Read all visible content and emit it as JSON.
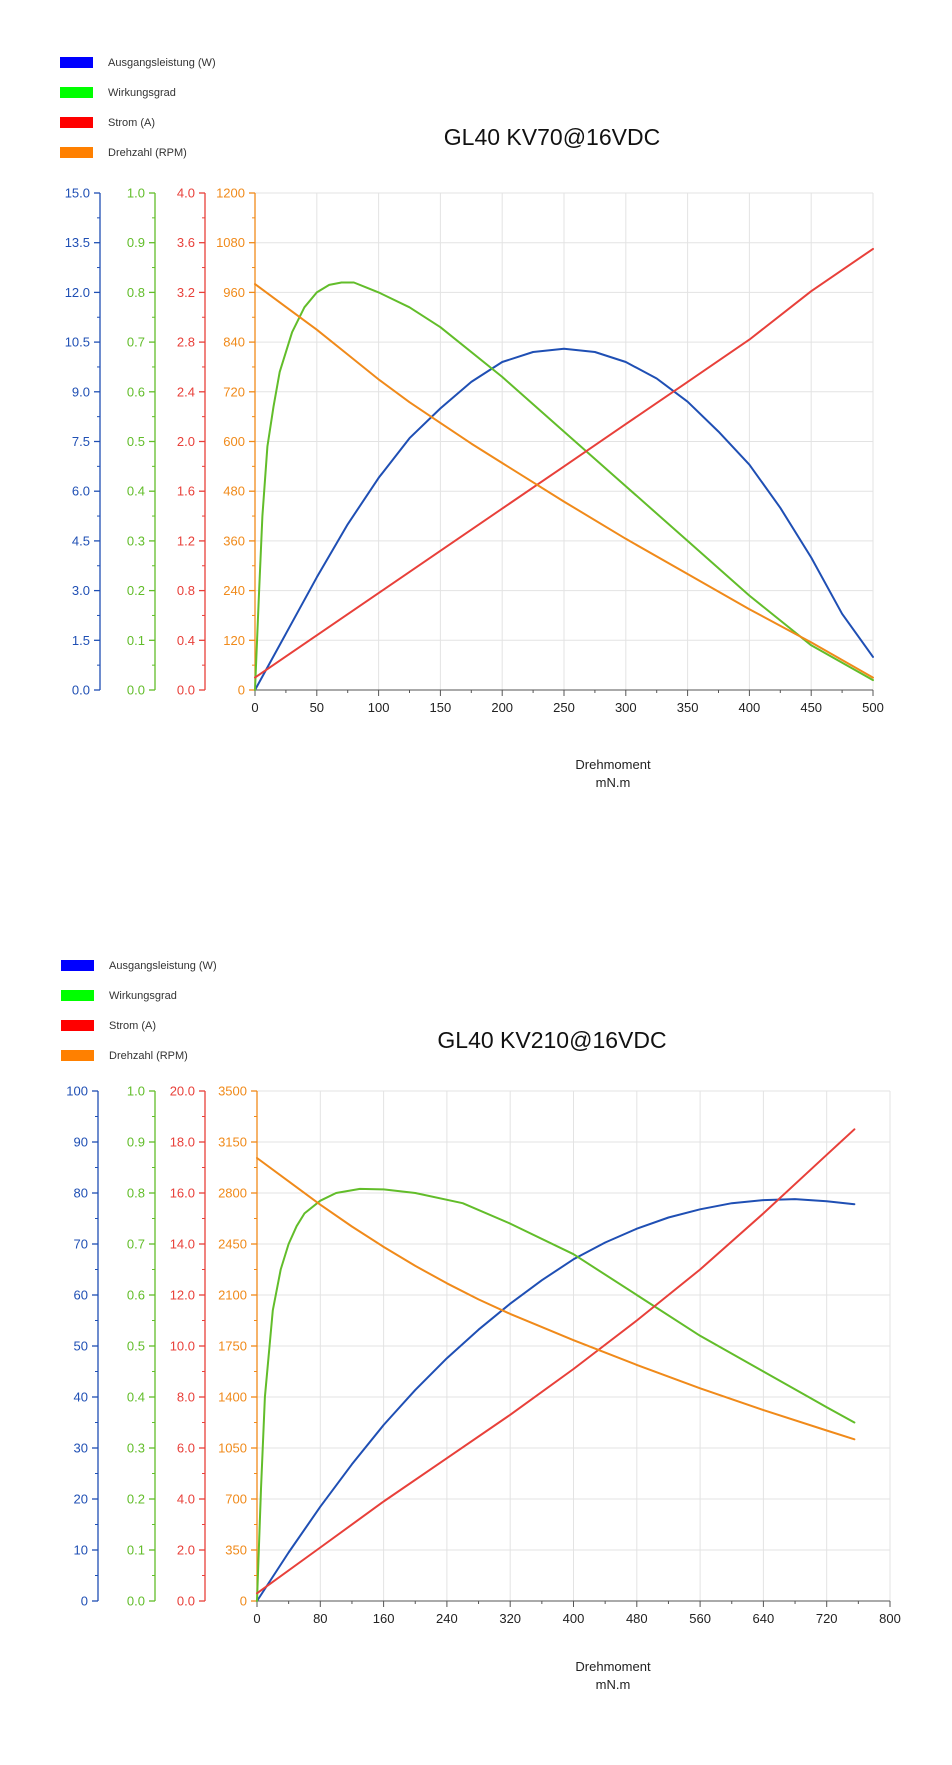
{
  "chart_data": [
    {
      "type": "line",
      "title": "GL40 KV70@16VDC",
      "xlabel": "Drehmoment",
      "xunit": "mN.m",
      "xlim": [
        0,
        500
      ],
      "xticks": [
        "0",
        "50",
        "100",
        "150",
        "200",
        "250",
        "300",
        "350",
        "400",
        "450",
        "500"
      ],
      "legend_position": "top-left",
      "grid": true,
      "axes": [
        {
          "name": "Ausgangsleistung (W)",
          "color": "#1f4fb4",
          "ylim": [
            0,
            15
          ],
          "ticks": [
            "0.0",
            "1.5",
            "3.0",
            "4.5",
            "6.0",
            "7.5",
            "9.0",
            "10.5",
            "12.0",
            "13.5",
            "15.0"
          ]
        },
        {
          "name": "Wirkungsgrad",
          "color": "#62bd2a",
          "ylim": [
            0,
            1
          ],
          "ticks": [
            "0.0",
            "0.1",
            "0.2",
            "0.3",
            "0.4",
            "0.5",
            "0.6",
            "0.7",
            "0.8",
            "0.9",
            "1.0"
          ]
        },
        {
          "name": "Strom (A)",
          "color": "#e8403a",
          "ylim": [
            0,
            4
          ],
          "ticks": [
            "0.0",
            "0.4",
            "0.8",
            "1.2",
            "1.6",
            "2.0",
            "2.4",
            "2.8",
            "3.2",
            "3.6",
            "4.0"
          ]
        },
        {
          "name": "Drehzahl (RPM)",
          "color": "#f08a1a",
          "ylim": [
            0,
            1200
          ],
          "ticks": [
            "0",
            "120",
            "240",
            "360",
            "480",
            "600",
            "720",
            "840",
            "960",
            "1080",
            "1200"
          ]
        }
      ],
      "legend": [
        {
          "label": "Ausgangsleistung (W)",
          "color": "#0000ff"
        },
        {
          "label": "Wirkungsgrad",
          "color": "#00ff00"
        },
        {
          "label": "Strom (A)",
          "color": "#ff0000"
        },
        {
          "label": "Drehzahl (RPM)",
          "color": "#ff8000"
        }
      ],
      "series": [
        {
          "name": "Ausgangsleistung (W)",
          "axis": 0,
          "x": [
            0,
            25,
            50,
            75,
            100,
            125,
            150,
            175,
            200,
            225,
            250,
            275,
            300,
            325,
            350,
            375,
            400,
            425,
            450,
            475,
            500
          ],
          "values": [
            0,
            1.7,
            3.4,
            5.0,
            6.4,
            7.6,
            8.5,
            9.3,
            9.9,
            10.2,
            10.3,
            10.2,
            9.9,
            9.4,
            8.7,
            7.8,
            6.8,
            5.5,
            4.0,
            2.3,
            1.0
          ]
        },
        {
          "name": "Wirkungsgrad",
          "axis": 1,
          "x": [
            0,
            3,
            6,
            10,
            15,
            20,
            30,
            40,
            50,
            60,
            70,
            80,
            90,
            100,
            125,
            150,
            200,
            250,
            300,
            350,
            400,
            450,
            500
          ],
          "values": [
            0,
            0.18,
            0.35,
            0.49,
            0.57,
            0.64,
            0.72,
            0.77,
            0.8,
            0.815,
            0.82,
            0.82,
            0.81,
            0.8,
            0.77,
            0.73,
            0.63,
            0.52,
            0.41,
            0.3,
            0.19,
            0.09,
            0.02
          ]
        },
        {
          "name": "Strom (A)",
          "axis": 2,
          "x": [
            0,
            50,
            100,
            150,
            200,
            250,
            300,
            350,
            400,
            450,
            500
          ],
          "values": [
            0.1,
            0.44,
            0.78,
            1.12,
            1.46,
            1.8,
            2.14,
            2.48,
            2.82,
            3.21,
            3.55
          ]
        },
        {
          "name": "Drehzahl (RPM)",
          "axis": 3,
          "x": [
            0,
            25,
            50,
            75,
            100,
            125,
            150,
            175,
            200,
            250,
            300,
            350,
            400,
            450,
            500
          ],
          "values": [
            980,
            925,
            870,
            810,
            750,
            695,
            645,
            595,
            548,
            455,
            365,
            280,
            195,
            115,
            30
          ]
        }
      ]
    },
    {
      "type": "line",
      "title": "GL40 KV210@16VDC",
      "xlabel": "Drehmoment",
      "xunit": "mN.m",
      "xlim": [
        0,
        800
      ],
      "xticks": [
        "0",
        "80",
        "160",
        "240",
        "320",
        "400",
        "480",
        "560",
        "640",
        "720",
        "800"
      ],
      "legend_position": "top-left",
      "grid": true,
      "axes": [
        {
          "name": "Ausgangsleistung (W)",
          "color": "#1f4fb4",
          "ylim": [
            0,
            100
          ],
          "ticks": [
            "0",
            "10",
            "20",
            "30",
            "40",
            "50",
            "60",
            "70",
            "80",
            "90",
            "100"
          ]
        },
        {
          "name": "Wirkungsgrad",
          "color": "#62bd2a",
          "ylim": [
            0,
            1
          ],
          "ticks": [
            "0.0",
            "0.1",
            "0.2",
            "0.3",
            "0.4",
            "0.5",
            "0.6",
            "0.7",
            "0.8",
            "0.9",
            "1.0"
          ]
        },
        {
          "name": "Strom (A)",
          "color": "#e8403a",
          "ylim": [
            0,
            20
          ],
          "ticks": [
            "0.0",
            "2.0",
            "4.0",
            "6.0",
            "8.0",
            "10.0",
            "12.0",
            "14.0",
            "16.0",
            "18.0",
            "20.0"
          ]
        },
        {
          "name": "Drehzahl (RPM)",
          "color": "#f08a1a",
          "ylim": [
            0,
            3500
          ],
          "ticks": [
            "0",
            "350",
            "700",
            "1050",
            "1400",
            "1750",
            "2100",
            "2450",
            "2800",
            "3150",
            "3500"
          ]
        }
      ],
      "legend": [
        {
          "label": "Ausgangsleistung (W)",
          "color": "#0000ff"
        },
        {
          "label": "Wirkungsgrad",
          "color": "#00ff00"
        },
        {
          "label": "Strom (A)",
          "color": "#ff0000"
        },
        {
          "label": "Drehzahl (RPM)",
          "color": "#ff8000"
        }
      ],
      "series": [
        {
          "name": "Ausgangsleistung (W)",
          "axis": 0,
          "x": [
            0,
            40,
            80,
            120,
            160,
            200,
            240,
            280,
            320,
            360,
            400,
            440,
            480,
            520,
            560,
            600,
            640,
            680,
            720,
            755
          ],
          "values": [
            0,
            9.5,
            18.5,
            26.8,
            34.5,
            41.4,
            47.6,
            53.2,
            58.3,
            62.9,
            67.0,
            70.3,
            73.0,
            75.2,
            76.8,
            78.0,
            78.6,
            78.8,
            78.4,
            77.8
          ]
        },
        {
          "name": "Wirkungsgrad",
          "axis": 1,
          "x": [
            0,
            5,
            10,
            20,
            30,
            40,
            50,
            60,
            80,
            100,
            130,
            160,
            200,
            260,
            320,
            400,
            480,
            560,
            640,
            720,
            755
          ],
          "values": [
            0,
            0.22,
            0.4,
            0.57,
            0.65,
            0.7,
            0.735,
            0.76,
            0.785,
            0.8,
            0.808,
            0.807,
            0.8,
            0.78,
            0.74,
            0.68,
            0.6,
            0.52,
            0.45,
            0.38,
            0.35
          ]
        },
        {
          "name": "Strom (A)",
          "axis": 2,
          "x": [
            0,
            80,
            160,
            240,
            320,
            400,
            480,
            560,
            640,
            720,
            755
          ],
          "values": [
            0.3,
            2.1,
            3.9,
            5.6,
            7.3,
            9.1,
            11.0,
            13.0,
            15.2,
            17.5,
            18.5
          ]
        },
        {
          "name": "Drehzahl (RPM)",
          "axis": 3,
          "x": [
            0,
            40,
            80,
            120,
            160,
            200,
            240,
            280,
            320,
            360,
            400,
            480,
            560,
            640,
            720,
            755
          ],
          "values": [
            3040,
            2880,
            2720,
            2570,
            2430,
            2300,
            2180,
            2070,
            1970,
            1880,
            1790,
            1620,
            1460,
            1310,
            1170,
            1110
          ]
        }
      ]
    }
  ]
}
